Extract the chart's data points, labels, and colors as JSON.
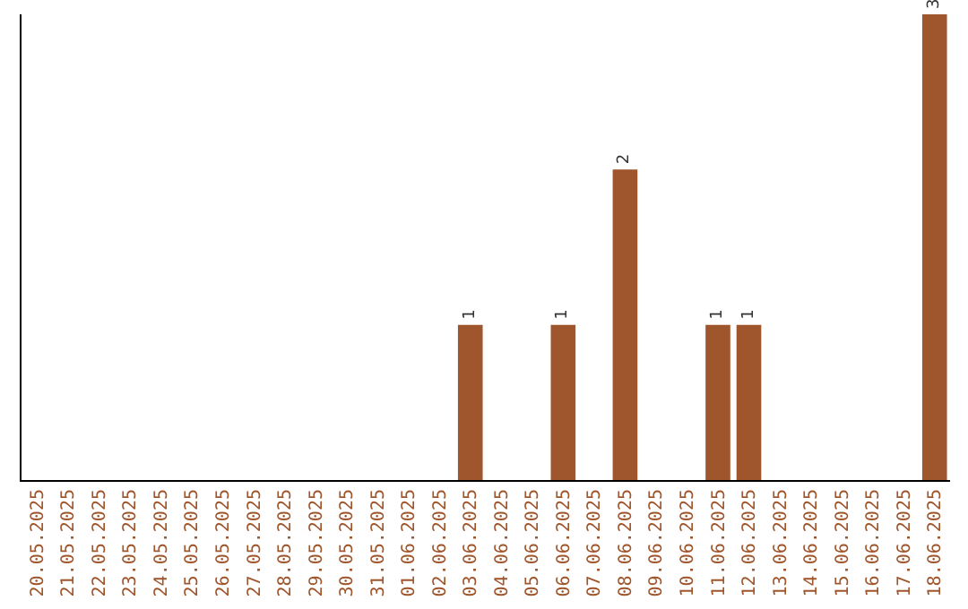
{
  "chart_data": {
    "type": "bar",
    "categories": [
      "20.05.2025",
      "21.05.2025",
      "22.05.2025",
      "23.05.2025",
      "24.05.2025",
      "25.05.2025",
      "26.05.2025",
      "27.05.2025",
      "28.05.2025",
      "29.05.2025",
      "30.05.2025",
      "31.05.2025",
      "01.06.2025",
      "02.06.2025",
      "03.06.2025",
      "04.06.2025",
      "05.06.2025",
      "06.06.2025",
      "07.06.2025",
      "08.06.2025",
      "09.06.2025",
      "10.06.2025",
      "11.06.2025",
      "12.06.2025",
      "13.06.2025",
      "14.06.2025",
      "15.06.2025",
      "16.06.2025",
      "17.06.2025",
      "18.06.2025"
    ],
    "values": [
      null,
      null,
      null,
      null,
      null,
      null,
      null,
      null,
      null,
      null,
      null,
      null,
      null,
      null,
      1,
      null,
      null,
      1,
      null,
      2,
      null,
      null,
      1,
      1,
      null,
      null,
      null,
      null,
      null,
      3
    ],
    "data_labels": true,
    "color": "#a0562c",
    "grid": false,
    "legend": false
  }
}
